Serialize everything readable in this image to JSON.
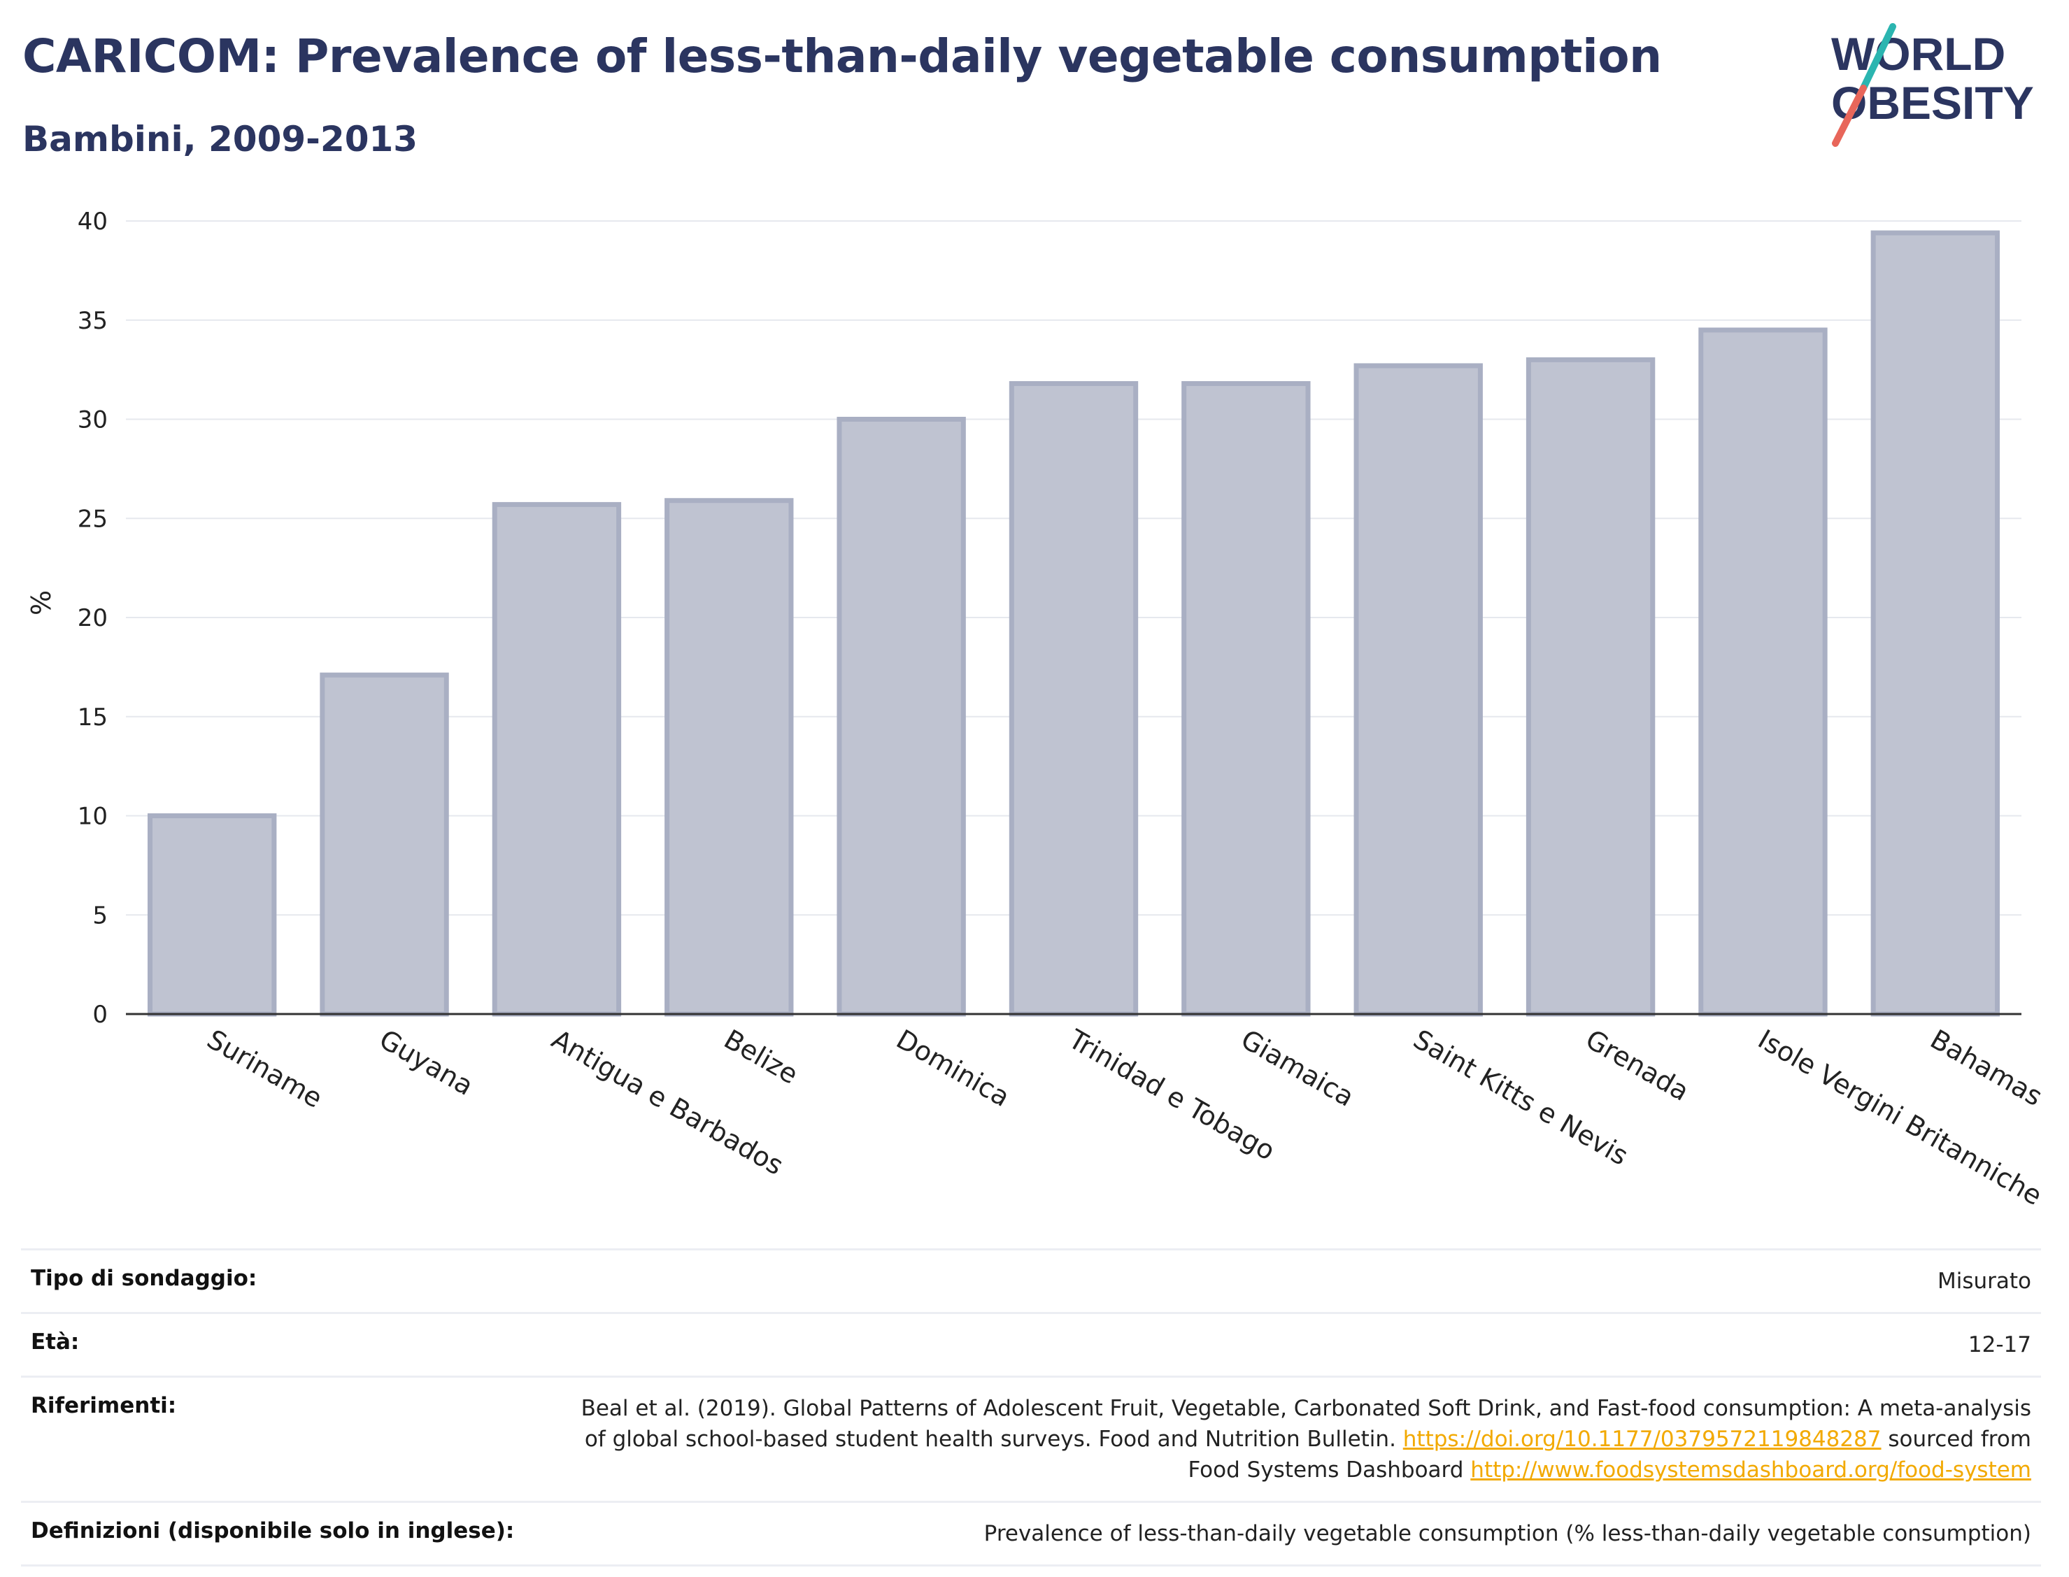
{
  "header": {
    "title": "CARICOM: Prevalence of less-than-daily vegetable consumption",
    "subtitle": "Bambini, 2009-2013"
  },
  "logo": {
    "line1": "WORLD",
    "line2": "OBESITY",
    "accent_teal": "#2bb5b0",
    "accent_red": "#e8665a",
    "text_color": "#2b3560"
  },
  "chart_data": {
    "type": "bar",
    "categories": [
      "Suriname",
      "Guyana",
      "Antigua e Barbados",
      "Belize",
      "Dominica",
      "Trinidad e Tobago",
      "Giamaica",
      "Saint Kitts e Nevis",
      "Grenada",
      "Isole Vergini Britanniche",
      "Bahamas"
    ],
    "values": [
      10.0,
      17.1,
      25.7,
      25.9,
      30.0,
      31.8,
      31.8,
      32.7,
      33.0,
      34.5,
      39.4
    ],
    "ylabel": "%",
    "ylim": [
      0,
      40
    ],
    "yticks": [
      0,
      5,
      10,
      15,
      20,
      25,
      30,
      35,
      40
    ],
    "grid": true,
    "bar_fill": "#bfc3d1",
    "bar_stroke": "#a9afc3"
  },
  "meta": {
    "survey_type_label": "Tipo di sondaggio:",
    "survey_type_value": "Misurato",
    "age_label": "Età:",
    "age_value": "12-17",
    "references_label": "Riferimenti:",
    "references_text1": "Beal et al. (2019). Global Patterns of Adolescent Fruit, Vegetable, Carbonated Soft Drink, and Fast-food consumption: A meta-analysis of global school-based student health surveys. Food and Nutrition Bulletin. ",
    "references_link1": "https://doi.org/10.1177/0379572119848287",
    "references_text2": " sourced from Food Systems Dashboard ",
    "references_link2": "http://www.foodsystemsdashboard.org/food-system",
    "definitions_label": "Definizioni (disponibile solo in inglese):",
    "definitions_value": "Prevalence of less-than-daily vegetable consumption (% less-than-daily vegetable consumption)"
  }
}
